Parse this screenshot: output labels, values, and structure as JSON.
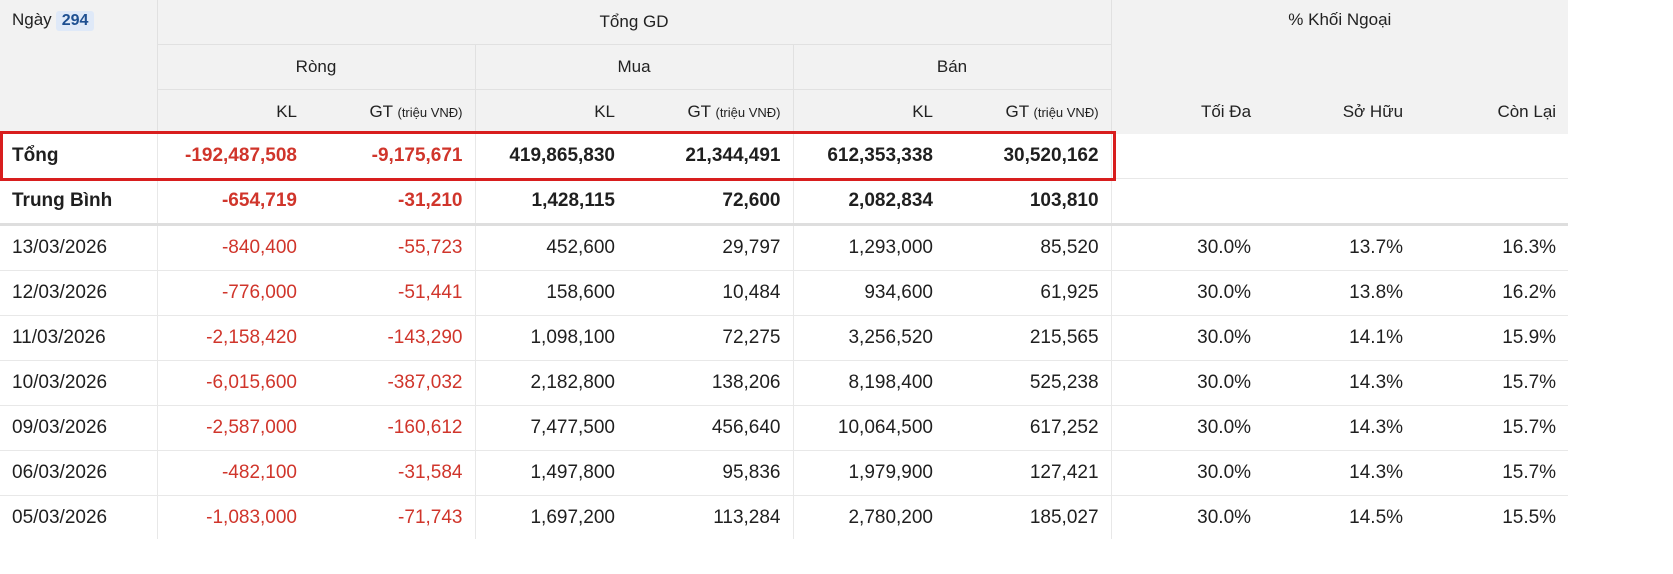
{
  "header": {
    "ngay_label": "Ngày",
    "count_badge": "294",
    "tong_gd": "Tổng GD",
    "khoi_ngoai": "% Khối Ngoại",
    "rong": "Ròng",
    "mua": "Mua",
    "ban": "Bán",
    "kl": "KL",
    "gt": "GT",
    "gt_unit": "(triệu VNĐ)",
    "toi_da": "Tối Đa",
    "so_huu": "Sở Hữu",
    "con_lai": "Còn Lại"
  },
  "summary": [
    {
      "label": "Tổng",
      "rong_kl": "-192,487,508",
      "rong_gt": "-9,175,671",
      "mua_kl": "419,865,830",
      "mua_gt": "21,344,491",
      "ban_kl": "612,353,338",
      "ban_gt": "30,520,162"
    },
    {
      "label": "Trung Bình",
      "rong_kl": "-654,719",
      "rong_gt": "-31,210",
      "mua_kl": "1,428,115",
      "mua_gt": "72,600",
      "ban_kl": "2,082,834",
      "ban_gt": "103,810"
    }
  ],
  "rows": [
    {
      "date": "13/03/2026",
      "rong_kl": "-840,400",
      "rong_gt": "-55,723",
      "mua_kl": "452,600",
      "mua_gt": "29,797",
      "ban_kl": "1,293,000",
      "ban_gt": "85,520",
      "toi_da": "30.0%",
      "so_huu": "13.7%",
      "con_lai": "16.3%"
    },
    {
      "date": "12/03/2026",
      "rong_kl": "-776,000",
      "rong_gt": "-51,441",
      "mua_kl": "158,600",
      "mua_gt": "10,484",
      "ban_kl": "934,600",
      "ban_gt": "61,925",
      "toi_da": "30.0%",
      "so_huu": "13.8%",
      "con_lai": "16.2%"
    },
    {
      "date": "11/03/2026",
      "rong_kl": "-2,158,420",
      "rong_gt": "-143,290",
      "mua_kl": "1,098,100",
      "mua_gt": "72,275",
      "ban_kl": "3,256,520",
      "ban_gt": "215,565",
      "toi_da": "30.0%",
      "so_huu": "14.1%",
      "con_lai": "15.9%"
    },
    {
      "date": "10/03/2026",
      "rong_kl": "-6,015,600",
      "rong_gt": "-387,032",
      "mua_kl": "2,182,800",
      "mua_gt": "138,206",
      "ban_kl": "8,198,400",
      "ban_gt": "525,238",
      "toi_da": "30.0%",
      "so_huu": "14.3%",
      "con_lai": "15.7%"
    },
    {
      "date": "09/03/2026",
      "rong_kl": "-2,587,000",
      "rong_gt": "-160,612",
      "mua_kl": "7,477,500",
      "mua_gt": "456,640",
      "ban_kl": "10,064,500",
      "ban_gt": "617,252",
      "toi_da": "30.0%",
      "so_huu": "14.3%",
      "con_lai": "15.7%"
    },
    {
      "date": "06/03/2026",
      "rong_kl": "-482,100",
      "rong_gt": "-31,584",
      "mua_kl": "1,497,800",
      "mua_gt": "95,836",
      "ban_kl": "1,979,900",
      "ban_gt": "127,421",
      "toi_da": "30.0%",
      "so_huu": "14.3%",
      "con_lai": "15.7%"
    },
    {
      "date": "05/03/2026",
      "rong_kl": "-1,083,000",
      "rong_gt": "-71,743",
      "mua_kl": "1,697,200",
      "mua_gt": "113,284",
      "ban_kl": "2,780,200",
      "ban_gt": "185,027",
      "toi_da": "30.0%",
      "so_huu": "14.5%",
      "con_lai": "15.5%"
    }
  ],
  "colors": {
    "negative": "#d0352b",
    "highlight_border": "#d81e1e",
    "header_bg": "#f2f2f2",
    "badge_bg": "#dfe9f8",
    "badge_text": "#1d4f91"
  }
}
